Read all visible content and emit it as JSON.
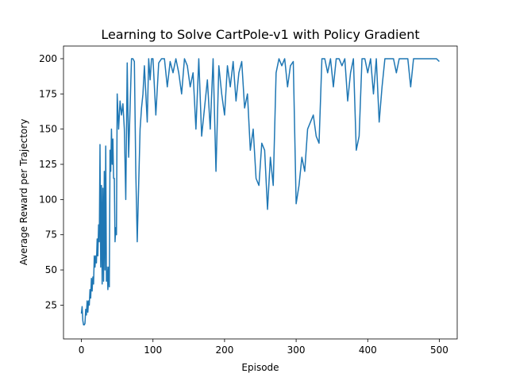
{
  "chart_data": {
    "type": "line",
    "title": "Learning to Solve CartPole-v1 with Policy Gradient",
    "xlabel": "Episode",
    "ylabel": "Average Reward per Trajectory",
    "xlim": [
      -25,
      525
    ],
    "ylim": [
      1,
      209
    ],
    "xticks": [
      0,
      100,
      200,
      300,
      400,
      500
    ],
    "yticks": [
      25,
      50,
      75,
      100,
      125,
      150,
      175,
      200
    ],
    "grid": false,
    "line_color": "#1f77b4",
    "series": [
      {
        "x": [
          0,
          1,
          2,
          3,
          4,
          5,
          6,
          7,
          8,
          9,
          10,
          11,
          12,
          13,
          14,
          15,
          16,
          17,
          18,
          19,
          20,
          21,
          22,
          23,
          24,
          25,
          26,
          27,
          28,
          29,
          30,
          31,
          32,
          33,
          34,
          35,
          36,
          37,
          38,
          39,
          40,
          41,
          42,
          43,
          44,
          45,
          46,
          47,
          48,
          49,
          50,
          52,
          54,
          56,
          58,
          60,
          62,
          64,
          66,
          68,
          70,
          72,
          74,
          76,
          78,
          80,
          82,
          84,
          86,
          88,
          90,
          92,
          94,
          96,
          98,
          100,
          104,
          108,
          112,
          116,
          120,
          124,
          128,
          132,
          136,
          140,
          144,
          148,
          152,
          156,
          160,
          164,
          168,
          172,
          176,
          180,
          184,
          188,
          192,
          196,
          200,
          204,
          208,
          212,
          216,
          220,
          224,
          228,
          232,
          236,
          240,
          244,
          248,
          252,
          256,
          260,
          264,
          268,
          272,
          276,
          280,
          284,
          288,
          292,
          296,
          300,
          304,
          308,
          312,
          316,
          320,
          324,
          328,
          332,
          336,
          340,
          344,
          348,
          352,
          356,
          360,
          364,
          368,
          372,
          376,
          380,
          384,
          388,
          392,
          396,
          400,
          404,
          408,
          412,
          416,
          420,
          424,
          428,
          432,
          436,
          440,
          444,
          448,
          452,
          456,
          460,
          464,
          468,
          472,
          476,
          480,
          484,
          488,
          492,
          496,
          500
        ],
        "y": [
          19,
          24,
          14,
          11,
          11,
          12,
          22,
          18,
          28,
          20,
          28,
          25,
          36,
          30,
          44,
          35,
          45,
          40,
          60,
          52,
          60,
          55,
          72,
          60,
          82,
          70,
          139,
          52,
          110,
          40,
          108,
          42,
          120,
          50,
          138,
          42,
          52,
          36,
          52,
          38,
          135,
          120,
          150,
          125,
          143,
          115,
          115,
          70,
          80,
          75,
          175,
          150,
          170,
          160,
          168,
          150,
          100,
          197,
          130,
          165,
          200,
          200,
          198,
          120,
          70,
          110,
          150,
          165,
          175,
          195,
          175,
          155,
          200,
          185,
          200,
          200,
          160,
          197,
          200,
          200,
          180,
          198,
          190,
          200,
          190,
          175,
          200,
          195,
          180,
          190,
          150,
          200,
          145,
          165,
          185,
          150,
          200,
          120,
          195,
          175,
          160,
          195,
          180,
          198,
          170,
          190,
          198,
          165,
          175,
          135,
          150,
          115,
          110,
          140,
          135,
          93,
          130,
          110,
          190,
          200,
          195,
          200,
          180,
          195,
          198,
          97,
          110,
          130,
          120,
          150,
          155,
          160,
          145,
          140,
          200,
          200,
          190,
          200,
          180,
          200,
          200,
          195,
          200,
          170,
          190,
          200,
          135,
          145,
          200,
          200,
          190,
          200,
          175,
          200,
          155,
          180,
          200,
          200,
          200,
          200,
          190,
          200,
          200,
          200,
          200,
          180,
          200,
          200,
          200,
          200,
          200,
          200,
          200,
          200,
          200,
          198
        ]
      }
    ]
  }
}
